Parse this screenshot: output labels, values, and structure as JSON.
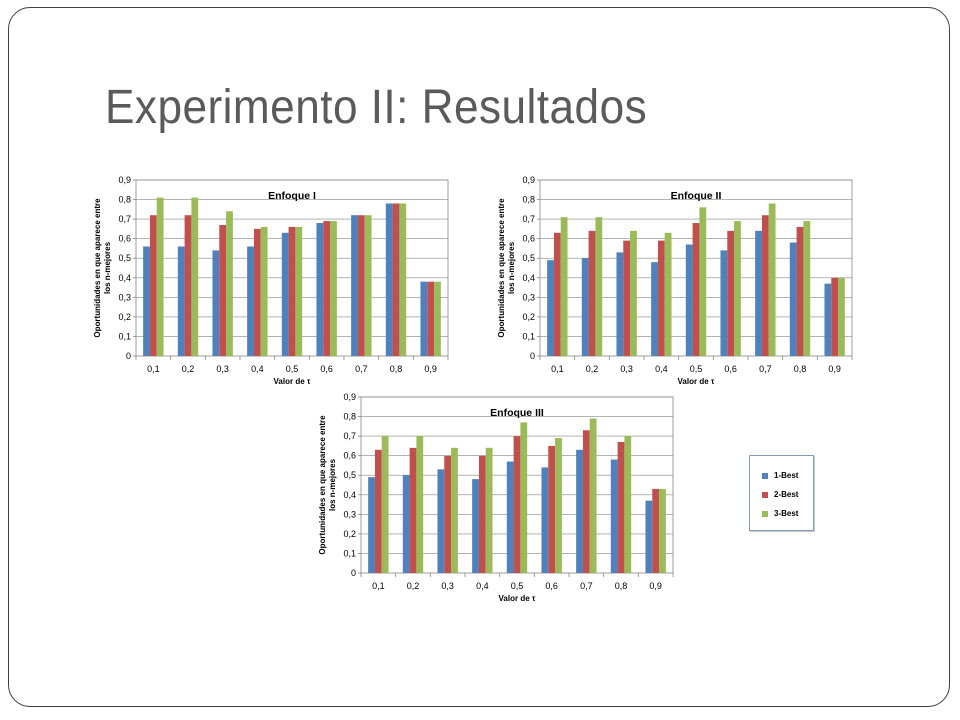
{
  "slide": {
    "title": "Experimento II: Resultados"
  },
  "colors": {
    "series": [
      "#4f81bd",
      "#c0504d",
      "#9bbb59"
    ]
  },
  "chart_data": [
    {
      "type": "bar",
      "title": "Enfoque I",
      "xlabel": "Valor de τ",
      "ylabel": [
        "Oportunidades en que aparece entre",
        "los n-mejores"
      ],
      "categories": [
        "0,1",
        "0,2",
        "0,3",
        "0,4",
        "0,5",
        "0,6",
        "0,7",
        "0,8",
        "0,9"
      ],
      "ylim": [
        0,
        0.9
      ],
      "yticks": [
        {
          "value": 0,
          "label": "0"
        },
        {
          "value": 0.1,
          "label": "0,1"
        },
        {
          "value": 0.2,
          "label": "0,2"
        },
        {
          "value": 0.3,
          "label": "0,3"
        },
        {
          "value": 0.4,
          "label": "0,4"
        },
        {
          "value": 0.5,
          "label": "0,5"
        },
        {
          "value": 0.6,
          "label": "0,6"
        },
        {
          "value": 0.7,
          "label": "0,7"
        },
        {
          "value": 0.8,
          "label": "0,8"
        },
        {
          "value": 0.9,
          "label": "0,9"
        }
      ],
      "grid": true,
      "series": [
        {
          "name": "1-Best",
          "values": [
            0.56,
            0.56,
            0.54,
            0.56,
            0.63,
            0.68,
            0.72,
            0.78,
            0.38
          ]
        },
        {
          "name": "2-Best",
          "values": [
            0.72,
            0.72,
            0.67,
            0.65,
            0.66,
            0.69,
            0.72,
            0.78,
            0.38
          ]
        },
        {
          "name": "3-Best",
          "values": [
            0.81,
            0.81,
            0.74,
            0.66,
            0.66,
            0.69,
            0.72,
            0.78,
            0.38
          ]
        }
      ]
    },
    {
      "type": "bar",
      "title": "Enfoque II",
      "xlabel": "Valor de τ",
      "ylabel": [
        "Oportunidades en que aparece entre",
        "los n-mejores"
      ],
      "categories": [
        "0,1",
        "0,2",
        "0,3",
        "0,4",
        "0,5",
        "0,6",
        "0,7",
        "0,8",
        "0,9"
      ],
      "ylim": [
        0,
        0.9
      ],
      "yticks": [
        {
          "value": 0,
          "label": "0"
        },
        {
          "value": 0.1,
          "label": "0,1"
        },
        {
          "value": 0.2,
          "label": "0,2"
        },
        {
          "value": 0.3,
          "label": "0,3"
        },
        {
          "value": 0.4,
          "label": "0,4"
        },
        {
          "value": 0.5,
          "label": "0,5"
        },
        {
          "value": 0.6,
          "label": "0,6"
        },
        {
          "value": 0.7,
          "label": "0,7"
        },
        {
          "value": 0.8,
          "label": "0,8"
        },
        {
          "value": 0.9,
          "label": "0,9"
        }
      ],
      "grid": true,
      "series": [
        {
          "name": "1-Best",
          "values": [
            0.49,
            0.5,
            0.53,
            0.48,
            0.57,
            0.54,
            0.64,
            0.58,
            0.37
          ]
        },
        {
          "name": "2-Best",
          "values": [
            0.63,
            0.64,
            0.59,
            0.59,
            0.68,
            0.64,
            0.72,
            0.66,
            0.4
          ]
        },
        {
          "name": "3-Best",
          "values": [
            0.71,
            0.71,
            0.64,
            0.63,
            0.76,
            0.69,
            0.78,
            0.69,
            0.4
          ]
        }
      ]
    },
    {
      "type": "bar",
      "title": "Enfoque III",
      "xlabel": "Valor de τ",
      "ylabel": [
        "Oportunidades en que aparece entre",
        "los n-mejores"
      ],
      "categories": [
        "0,1",
        "0,2",
        "0,3",
        "0,4",
        "0,5",
        "0,6",
        "0,7",
        "0,8",
        "0,9"
      ],
      "ylim": [
        0,
        0.9
      ],
      "yticks": [
        {
          "value": 0,
          "label": "0"
        },
        {
          "value": 0.1,
          "label": "0,1"
        },
        {
          "value": 0.2,
          "label": "0,2"
        },
        {
          "value": 0.3,
          "label": "0,3"
        },
        {
          "value": 0.4,
          "label": "0,4"
        },
        {
          "value": 0.5,
          "label": "0,5"
        },
        {
          "value": 0.6,
          "label": "0,6"
        },
        {
          "value": 0.7,
          "label": "0,7"
        },
        {
          "value": 0.8,
          "label": "0,8"
        },
        {
          "value": 0.9,
          "label": "0,9"
        }
      ],
      "grid": true,
      "series": [
        {
          "name": "1-Best",
          "values": [
            0.49,
            0.5,
            0.53,
            0.48,
            0.57,
            0.54,
            0.63,
            0.58,
            0.37
          ]
        },
        {
          "name": "2-Best",
          "values": [
            0.63,
            0.64,
            0.6,
            0.6,
            0.7,
            0.65,
            0.73,
            0.67,
            0.43
          ]
        },
        {
          "name": "3-Best",
          "values": [
            0.7,
            0.7,
            0.64,
            0.64,
            0.77,
            0.69,
            0.79,
            0.7,
            0.43
          ]
        }
      ]
    }
  ],
  "legend": {
    "placement": "right",
    "items": [
      {
        "label": "1-Best",
        "color": "#4f81bd"
      },
      {
        "label": "2-Best",
        "color": "#c0504d"
      },
      {
        "label": "3-Best",
        "color": "#9bbb59"
      }
    ]
  }
}
